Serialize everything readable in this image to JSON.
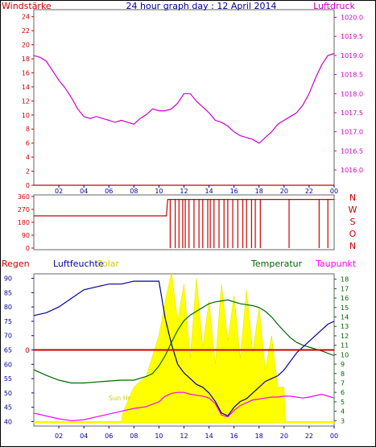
{
  "colors": {
    "wind": "#cc0000",
    "pressure": "#cc00cc",
    "humidity": "#000099",
    "temperature": "#006600",
    "solar": "#ffff00",
    "solar_text": "#cccc00",
    "dewpoint": "#ff00ff",
    "rain": "#cc0000",
    "title": "#000099",
    "axis_time": "#000099"
  },
  "chart_data": [
    {
      "type": "line",
      "title": "24 hour graph day : 12 April 2014",
      "left_label": "Windstärke",
      "right_label": "Luftdruck",
      "x_ticks": [
        "02",
        "04",
        "06",
        "08",
        "10",
        "12",
        "14",
        "16",
        "18",
        "20",
        "22",
        "00"
      ],
      "y_left_ticks": [
        0,
        2,
        4,
        6,
        8,
        10,
        12,
        14,
        16,
        18,
        20,
        22,
        24
      ],
      "y_right_ticks": [
        1016,
        1016.5,
        1017,
        1017.5,
        1018,
        1018.5,
        1019,
        1019.5,
        1020
      ],
      "xlim": [
        0,
        24
      ],
      "ylim_left": [
        0,
        25
      ],
      "ylim_right": [
        1015.6,
        1020.2
      ],
      "series": [
        {
          "key": "wind",
          "axis": "left",
          "x": [
            0,
            24
          ],
          "y": [
            0,
            0
          ]
        },
        {
          "key": "pressure",
          "axis": "right",
          "x": [
            0,
            0.5,
            1,
            1.5,
            2,
            2.5,
            3,
            3.5,
            4,
            4.5,
            5,
            5.5,
            6,
            6.5,
            7,
            7.5,
            8,
            8.5,
            9,
            9.5,
            10,
            10.5,
            11,
            11.5,
            12,
            12.5,
            13,
            13.5,
            14,
            14.5,
            15,
            15.5,
            16,
            16.5,
            17,
            17.5,
            18,
            18.5,
            19,
            19.5,
            20,
            20.5,
            21,
            21.5,
            22,
            22.5,
            23,
            23.5,
            24
          ],
          "y": [
            1019,
            1018.95,
            1018.85,
            1018.6,
            1018.35,
            1018.15,
            1017.9,
            1017.6,
            1017.4,
            1017.35,
            1017.4,
            1017.35,
            1017.3,
            1017.25,
            1017.3,
            1017.25,
            1017.2,
            1017.35,
            1017.45,
            1017.6,
            1017.55,
            1017.55,
            1017.6,
            1017.75,
            1018.0,
            1018.0,
            1017.8,
            1017.65,
            1017.5,
            1017.3,
            1017.25,
            1017.15,
            1017.0,
            1016.9,
            1016.85,
            1016.8,
            1016.7,
            1016.85,
            1017.0,
            1017.2,
            1017.3,
            1017.4,
            1017.5,
            1017.7,
            1018.0,
            1018.4,
            1018.75,
            1019.0,
            1019.05
          ]
        }
      ]
    },
    {
      "type": "line",
      "right_letters": [
        "N",
        "W",
        "S",
        "O",
        "N"
      ],
      "y_ticks": [
        0,
        90,
        180,
        270,
        360
      ],
      "xlim": [
        0,
        24
      ],
      "ylim": [
        0,
        360
      ],
      "series": [
        {
          "key": "wind_direction",
          "x": [
            0,
            10.6,
            10.7,
            24
          ],
          "y": [
            225,
            225,
            340,
            340
          ],
          "drops": [
            10.9,
            11.3,
            11.6,
            11.9,
            12.1,
            12.4,
            12.8,
            13.2,
            13.5,
            13.9,
            14.1,
            14.4,
            14.8,
            15.2,
            15.5,
            15.9,
            16.3,
            16.7,
            17.0,
            17.4,
            17.7,
            18.1,
            20.4,
            22.8,
            23.5
          ]
        }
      ]
    },
    {
      "type": "line",
      "left_label": "Regen",
      "humidity_label": "Luftfeuchte",
      "solar_label": "Solar",
      "temperature_label": "Temperatur",
      "dewpoint_label": "Taupunkt",
      "rain_value_label": "0",
      "sun_label": "Sun Hr",
      "y_left_ticks": [
        40,
        45,
        50,
        55,
        60,
        65,
        70,
        75,
        80,
        85,
        90
      ],
      "y_right_ticks": [
        3,
        4,
        5,
        6,
        7,
        8,
        9,
        10,
        11,
        12,
        13,
        14,
        15,
        16,
        17,
        18
      ],
      "xlim": [
        0,
        24
      ],
      "ylim_left": [
        39,
        91
      ],
      "ylim_right": [
        2.6,
        18.4
      ],
      "series": [
        {
          "key": "humidity",
          "axis": "left",
          "x": [
            0,
            1,
            2,
            3,
            4,
            5,
            6,
            7,
            8,
            9,
            10,
            10.5,
            11,
            11.5,
            12,
            12.5,
            13,
            13.5,
            14,
            14.5,
            15,
            15.5,
            16,
            16.5,
            17,
            17.5,
            18,
            18.5,
            19,
            19.5,
            20,
            20.5,
            21,
            21.5,
            22,
            22.5,
            23,
            23.5,
            24
          ],
          "y": [
            77,
            78,
            80,
            83,
            86,
            87,
            88,
            88,
            89,
            89,
            89,
            76,
            67,
            60,
            57,
            55,
            53,
            52,
            50,
            47,
            43,
            42,
            45,
            47,
            48,
            50,
            52,
            54,
            55,
            56,
            58,
            61,
            64,
            66,
            68,
            70,
            72,
            74,
            75
          ]
        },
        {
          "key": "temperature",
          "axis": "right",
          "x": [
            0,
            1,
            2,
            3,
            4,
            5,
            6,
            7,
            8,
            9,
            9.5,
            10,
            10.5,
            11,
            11.5,
            12,
            12.5,
            13,
            13.5,
            14,
            14.5,
            15,
            15.5,
            16,
            16.5,
            17,
            17.5,
            18,
            18.5,
            19,
            19.5,
            20,
            20.5,
            21,
            21.5,
            22,
            23,
            24
          ],
          "y": [
            8.4,
            7.8,
            7.3,
            7.0,
            7.0,
            7.1,
            7.2,
            7.3,
            7.3,
            7.7,
            8.0,
            8.8,
            9.9,
            11.3,
            12.6,
            13.6,
            14.2,
            14.6,
            15.0,
            15.4,
            15.6,
            15.7,
            15.8,
            15.6,
            15.4,
            15.3,
            15.2,
            15.0,
            14.6,
            14.0,
            13.2,
            12.5,
            11.8,
            11.3,
            11.0,
            10.8,
            10.4,
            9.9
          ]
        },
        {
          "key": "dewpoint",
          "axis": "right",
          "x": [
            0,
            1,
            2,
            3,
            4,
            5,
            6,
            7,
            8,
            9,
            10,
            10.5,
            11,
            11.5,
            12,
            12.5,
            13,
            13.5,
            14,
            14.5,
            15,
            15.5,
            16,
            16.5,
            17,
            17.5,
            18,
            18.5,
            19,
            19.5,
            20,
            20.5,
            21,
            21.5,
            22,
            23,
            24
          ],
          "y": [
            3.8,
            3.5,
            3.2,
            3.0,
            3.1,
            3.4,
            3.7,
            4.0,
            4.3,
            4.5,
            5.0,
            5.6,
            5.9,
            6.0,
            6.0,
            5.8,
            5.7,
            5.6,
            5.4,
            4.8,
            3.6,
            3.4,
            4.1,
            4.6,
            4.9,
            5.2,
            5.3,
            5.4,
            5.5,
            5.5,
            5.6,
            5.6,
            5.5,
            5.4,
            5.5,
            5.8,
            5.4
          ]
        },
        {
          "key": "solar",
          "axis": "left",
          "fill": true,
          "x": [
            0,
            7,
            7.1,
            8,
            9,
            10,
            10.5,
            11,
            11.5,
            12,
            12.5,
            13,
            13.5,
            14,
            14.5,
            15,
            15.5,
            16,
            16.5,
            17,
            17.5,
            18,
            18.5,
            19,
            19.5,
            20,
            20.1,
            24
          ],
          "y": [
            40,
            40,
            43,
            52,
            56,
            70,
            82,
            92,
            75,
            88,
            62,
            90,
            66,
            82,
            60,
            88,
            68,
            84,
            62,
            86,
            64,
            80,
            58,
            70,
            52,
            52,
            40,
            40
          ]
        },
        {
          "key": "rain",
          "axis": "left",
          "x": [
            0,
            24
          ],
          "y": [
            65,
            65
          ]
        }
      ]
    }
  ]
}
